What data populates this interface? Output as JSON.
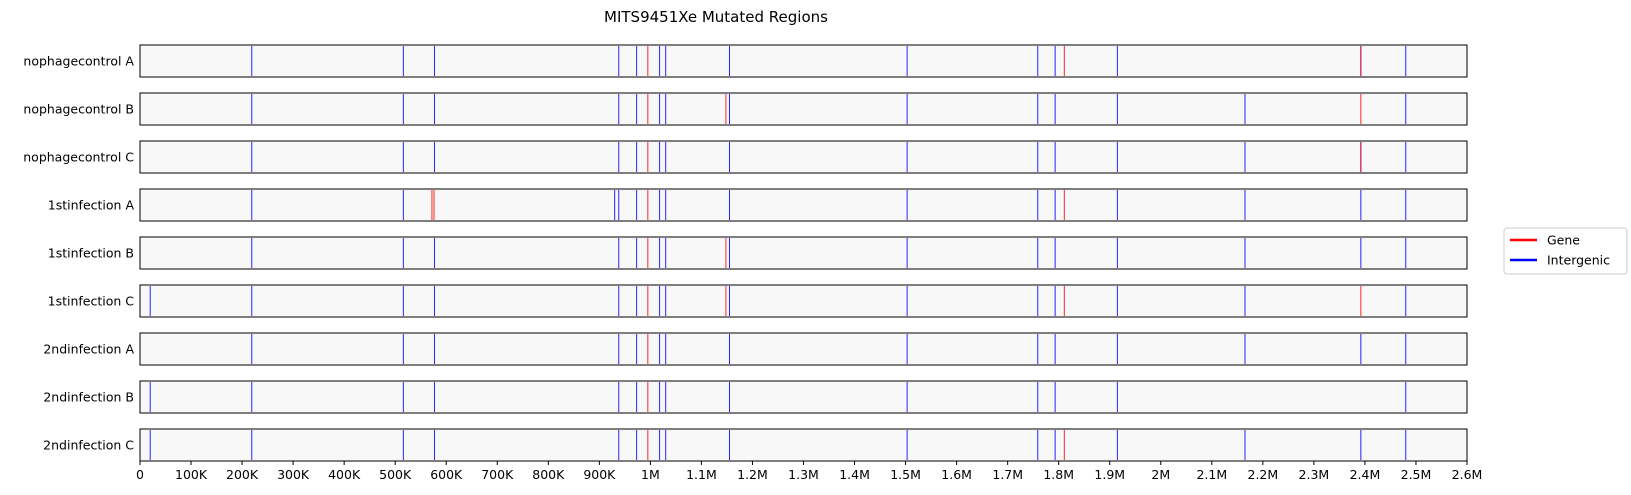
{
  "chart_data": {
    "type": "genome-track",
    "title": "MITS9451Xe Mutated Regions",
    "xlim": [
      0,
      2600000
    ],
    "x_ticks": [
      {
        "value": 0,
        "label": "0"
      },
      {
        "value": 100000,
        "label": "100K"
      },
      {
        "value": 200000,
        "label": "200K"
      },
      {
        "value": 300000,
        "label": "300K"
      },
      {
        "value": 400000,
        "label": "400K"
      },
      {
        "value": 500000,
        "label": "500K"
      },
      {
        "value": 600000,
        "label": "600K"
      },
      {
        "value": 700000,
        "label": "700K"
      },
      {
        "value": 800000,
        "label": "800K"
      },
      {
        "value": 900000,
        "label": "900K"
      },
      {
        "value": 1000000,
        "label": "1M"
      },
      {
        "value": 1100000,
        "label": "1.1M"
      },
      {
        "value": 1200000,
        "label": "1.2M"
      },
      {
        "value": 1300000,
        "label": "1.3M"
      },
      {
        "value": 1400000,
        "label": "1.4M"
      },
      {
        "value": 1500000,
        "label": "1.5M"
      },
      {
        "value": 1600000,
        "label": "1.6M"
      },
      {
        "value": 1700000,
        "label": "1.7M"
      },
      {
        "value": 1800000,
        "label": "1.8M"
      },
      {
        "value": 1900000,
        "label": "1.9M"
      },
      {
        "value": 2000000,
        "label": "2M"
      },
      {
        "value": 2100000,
        "label": "2.1M"
      },
      {
        "value": 2200000,
        "label": "2.2M"
      },
      {
        "value": 2300000,
        "label": "2.3M"
      },
      {
        "value": 2400000,
        "label": "2.4M"
      },
      {
        "value": 2500000,
        "label": "2.5M"
      },
      {
        "value": 2600000,
        "label": "2.6M"
      }
    ],
    "legend": {
      "position": "right",
      "entries": [
        {
          "name": "Gene",
          "color": "#ff0000"
        },
        {
          "name": "Intergenic",
          "color": "#0000ff"
        }
      ]
    },
    "colors": {
      "Gene": "#ff0000",
      "Intergenic": "#0000ff"
    },
    "samples": [
      {
        "name": "nophagecontrol A",
        "intergenic": [
          219000,
          516000,
          577000,
          938000,
          973000,
          1018000,
          1030000,
          1155000,
          1503000,
          1759000,
          1793000,
          1915000,
          2392000,
          2480000
        ],
        "gene": [
          995000,
          1811000,
          2392000
        ]
      },
      {
        "name": "nophagecontrol B",
        "intergenic": [
          219000,
          516000,
          577000,
          938000,
          973000,
          1018000,
          1030000,
          1155000,
          1503000,
          1759000,
          1793000,
          1915000,
          2165000,
          2480000
        ],
        "gene": [
          995000,
          1148000,
          2392000
        ]
      },
      {
        "name": "nophagecontrol C",
        "intergenic": [
          219000,
          516000,
          577000,
          938000,
          973000,
          1018000,
          1030000,
          1155000,
          1503000,
          1759000,
          1793000,
          1915000,
          2165000,
          2392000,
          2480000
        ],
        "gene": [
          995000,
          2392000
        ]
      },
      {
        "name": "1stinfection A",
        "intergenic": [
          219000,
          516000,
          930000,
          938000,
          973000,
          1018000,
          1030000,
          1155000,
          1503000,
          1759000,
          1793000,
          1915000,
          2165000,
          2392000,
          2480000
        ],
        "gene": [
          572000,
          576000,
          995000,
          1811000
        ]
      },
      {
        "name": "1stinfection B",
        "intergenic": [
          219000,
          516000,
          577000,
          938000,
          973000,
          1018000,
          1030000,
          1155000,
          1503000,
          1759000,
          1793000,
          1915000,
          2165000,
          2392000,
          2480000
        ],
        "gene": [
          995000,
          1148000
        ]
      },
      {
        "name": "1stinfection C",
        "intergenic": [
          20000,
          219000,
          516000,
          577000,
          938000,
          973000,
          1018000,
          1030000,
          1155000,
          1503000,
          1759000,
          1793000,
          1915000,
          2165000,
          2480000
        ],
        "gene": [
          995000,
          1148000,
          1811000,
          2392000
        ]
      },
      {
        "name": "2ndinfection A",
        "intergenic": [
          219000,
          516000,
          577000,
          938000,
          973000,
          1018000,
          1030000,
          1155000,
          1503000,
          1759000,
          1793000,
          1915000,
          2165000,
          2392000,
          2480000
        ],
        "gene": [
          995000
        ]
      },
      {
        "name": "2ndinfection B",
        "intergenic": [
          20000,
          219000,
          516000,
          577000,
          938000,
          973000,
          1018000,
          1030000,
          1155000,
          1503000,
          1759000,
          1793000,
          1915000,
          2480000
        ],
        "gene": [
          995000
        ]
      },
      {
        "name": "2ndinfection C",
        "intergenic": [
          20000,
          219000,
          516000,
          577000,
          938000,
          973000,
          1018000,
          1030000,
          1155000,
          1503000,
          1759000,
          1793000,
          1915000,
          2165000,
          2392000,
          2480000
        ],
        "gene": [
          995000,
          1811000
        ]
      }
    ]
  }
}
